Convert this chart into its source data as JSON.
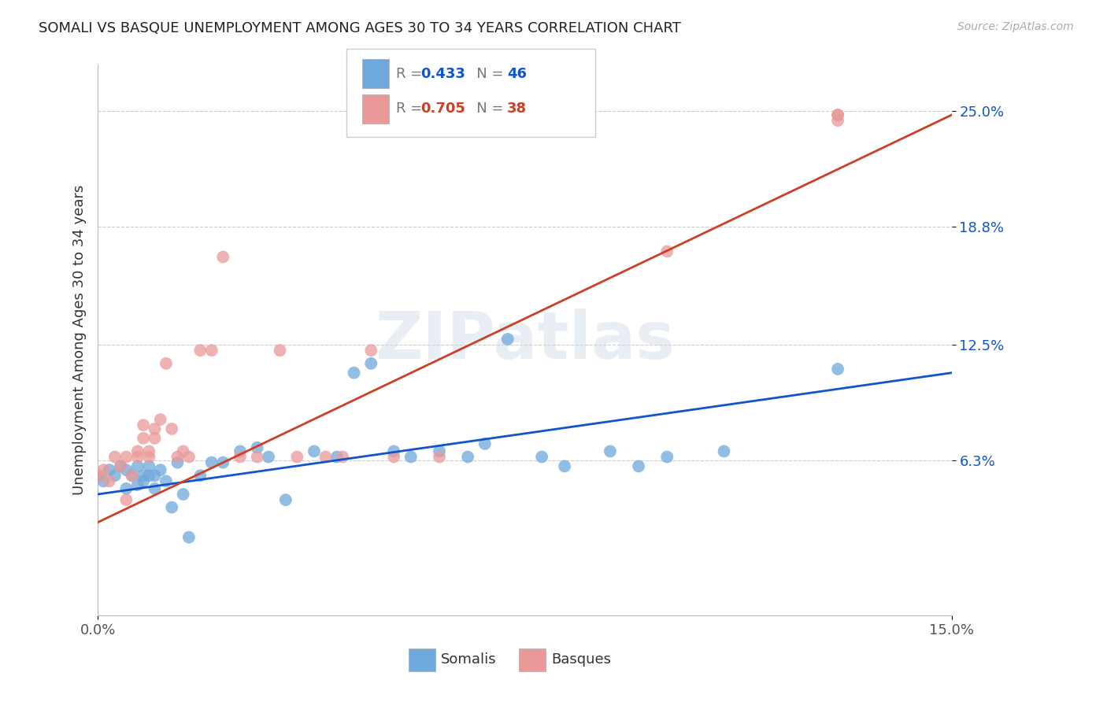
{
  "title": "SOMALI VS BASQUE UNEMPLOYMENT AMONG AGES 30 TO 34 YEARS CORRELATION CHART",
  "source": "Source: ZipAtlas.com",
  "ylabel": "Unemployment Among Ages 30 to 34 years",
  "xmin": 0.0,
  "xmax": 0.15,
  "ymin": -0.02,
  "ymax": 0.275,
  "ytick_positions": [
    0.063,
    0.125,
    0.188,
    0.25
  ],
  "ytick_labels": [
    "6.3%",
    "12.5%",
    "18.8%",
    "25.0%"
  ],
  "xtick_positions": [
    0.0,
    0.15
  ],
  "xtick_labels": [
    "0.0%",
    "15.0%"
  ],
  "somali_R": 0.433,
  "somali_N": 46,
  "basque_R": 0.705,
  "basque_N": 38,
  "somali_color": "#6fa8dc",
  "basque_color": "#ea9999",
  "somali_line_color": "#1155cc",
  "basque_line_color": "#cc4125",
  "somali_x": [
    0.0,
    0.001,
    0.002,
    0.003,
    0.004,
    0.005,
    0.005,
    0.006,
    0.007,
    0.007,
    0.008,
    0.008,
    0.009,
    0.009,
    0.01,
    0.01,
    0.011,
    0.012,
    0.013,
    0.014,
    0.015,
    0.016,
    0.018,
    0.02,
    0.022,
    0.025,
    0.028,
    0.03,
    0.033,
    0.038,
    0.042,
    0.045,
    0.048,
    0.052,
    0.055,
    0.06,
    0.065,
    0.068,
    0.072,
    0.078,
    0.082,
    0.09,
    0.095,
    0.1,
    0.11,
    0.13
  ],
  "somali_y": [
    0.055,
    0.052,
    0.058,
    0.055,
    0.06,
    0.048,
    0.058,
    0.055,
    0.05,
    0.06,
    0.052,
    0.055,
    0.06,
    0.055,
    0.048,
    0.055,
    0.058,
    0.052,
    0.038,
    0.062,
    0.045,
    0.022,
    0.055,
    0.062,
    0.062,
    0.068,
    0.07,
    0.065,
    0.042,
    0.068,
    0.065,
    0.11,
    0.115,
    0.068,
    0.065,
    0.068,
    0.065,
    0.072,
    0.128,
    0.065,
    0.06,
    0.068,
    0.06,
    0.065,
    0.068,
    0.112
  ],
  "basque_x": [
    0.0,
    0.001,
    0.002,
    0.003,
    0.004,
    0.005,
    0.005,
    0.006,
    0.007,
    0.007,
    0.008,
    0.008,
    0.009,
    0.009,
    0.01,
    0.01,
    0.011,
    0.012,
    0.013,
    0.014,
    0.015,
    0.016,
    0.018,
    0.02,
    0.022,
    0.025,
    0.028,
    0.032,
    0.035,
    0.04,
    0.043,
    0.048,
    0.052,
    0.06,
    0.1,
    0.13,
    0.13,
    0.13
  ],
  "basque_y": [
    0.055,
    0.058,
    0.052,
    0.065,
    0.06,
    0.042,
    0.065,
    0.055,
    0.068,
    0.065,
    0.075,
    0.082,
    0.065,
    0.068,
    0.075,
    0.08,
    0.085,
    0.115,
    0.08,
    0.065,
    0.068,
    0.065,
    0.122,
    0.122,
    0.172,
    0.065,
    0.065,
    0.122,
    0.065,
    0.065,
    0.065,
    0.122,
    0.065,
    0.065,
    0.175,
    0.248,
    0.245,
    0.248
  ],
  "watermark": "ZIPatlas",
  "background_color": "#ffffff",
  "grid_color": "#cccccc",
  "somali_line_y0": 0.045,
  "somali_line_y1": 0.11,
  "basque_line_y0": 0.03,
  "basque_line_y1": 0.248
}
